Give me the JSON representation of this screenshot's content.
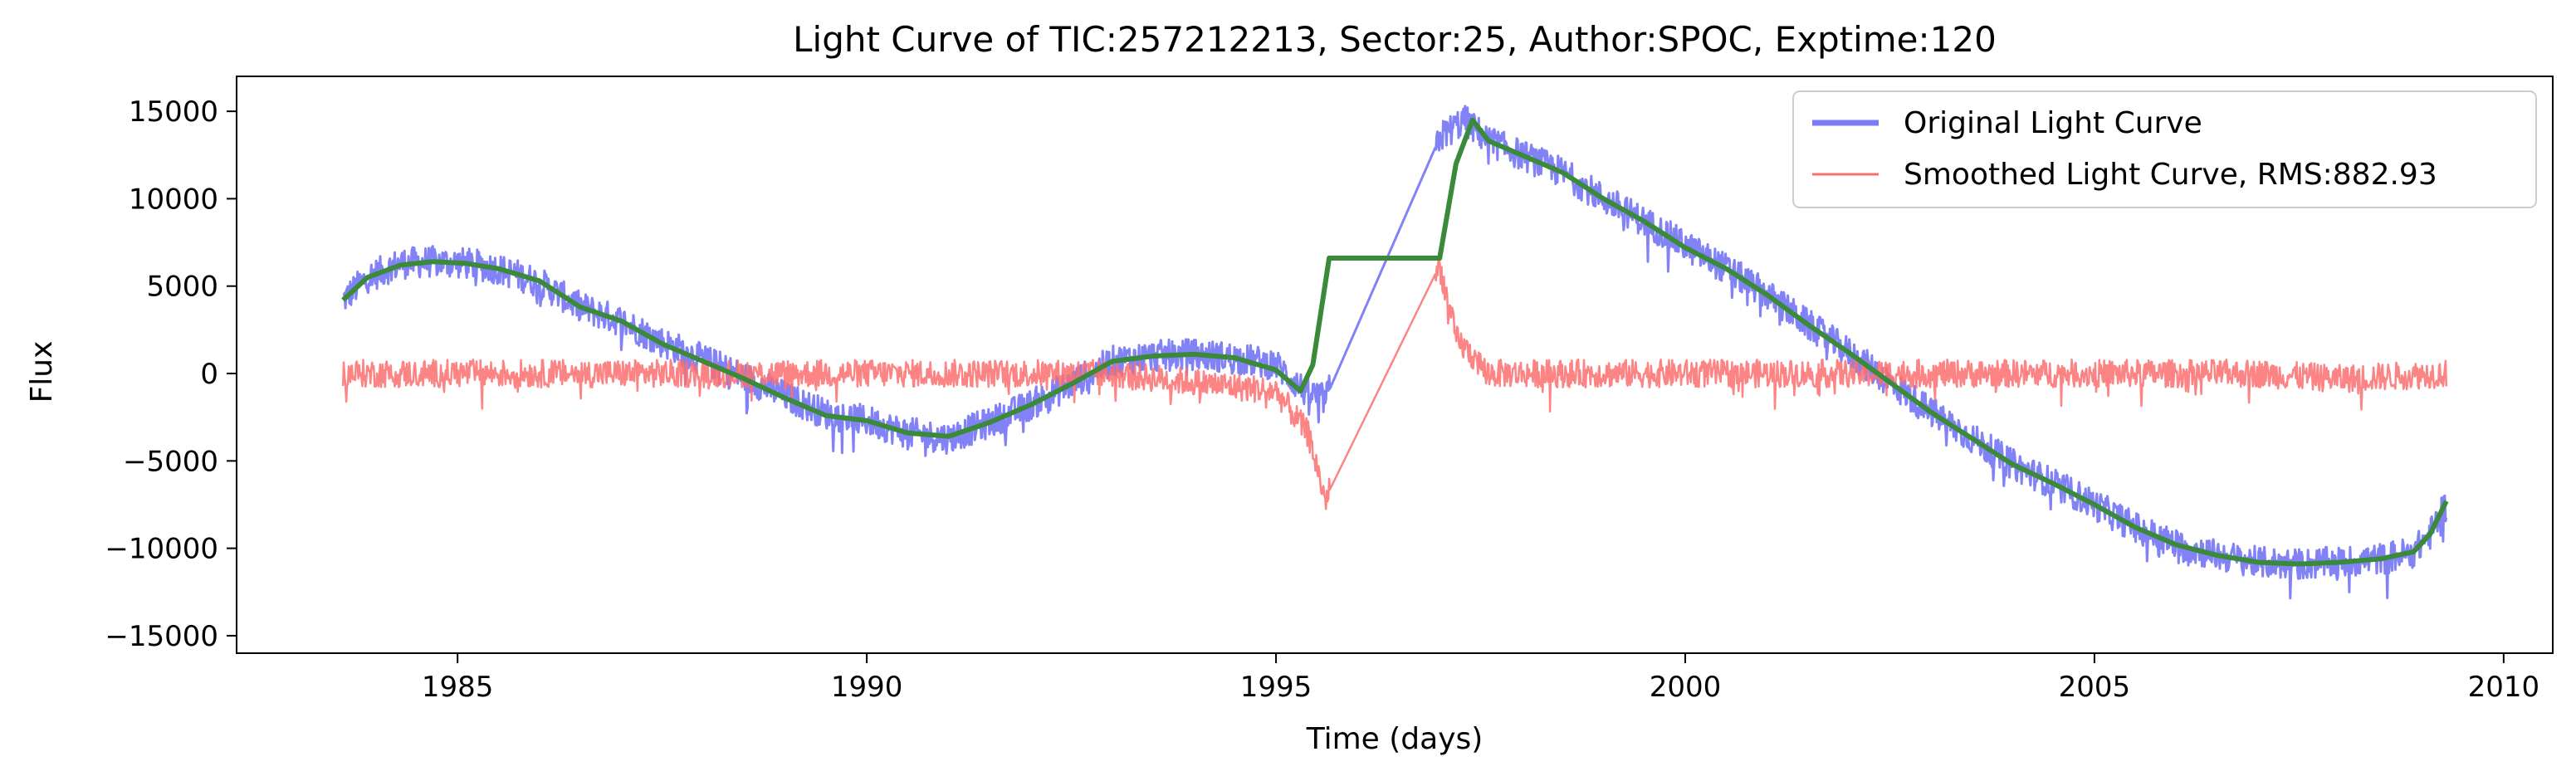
{
  "chart_data": {
    "type": "line",
    "title": "Light Curve of TIC:257212213, Sector:25, Author:SPOC, Exptime:120",
    "xlabel": "Time (days)",
    "ylabel": "Flux",
    "xlim": [
      1982.3,
      2010.6
    ],
    "ylim": [
      -16000,
      17000
    ],
    "xticks": [
      1985,
      1990,
      1995,
      2000,
      2005,
      2010
    ],
    "yticks": [
      -15000,
      -10000,
      -5000,
      0,
      5000,
      10000,
      15000
    ],
    "legend_position": "upper-right",
    "series": [
      {
        "name": "Original Light Curve",
        "color": "#7b7bf7",
        "noise_amplitude": 900,
        "x": [
          1983.6,
          1983.9,
          1984.3,
          1984.7,
          1985.1,
          1985.5,
          1986.0,
          1986.5,
          1987.0,
          1987.5,
          1988.0,
          1988.5,
          1989.0,
          1989.5,
          1990.0,
          1990.5,
          1991.0,
          1991.5,
          1992.0,
          1992.5,
          1993.0,
          1993.5,
          1994.0,
          1994.5,
          1995.0,
          1995.35,
          1995.6,
          1997.0,
          1997.3,
          1997.6,
          1998.0,
          1998.5,
          1999.0,
          1999.5,
          2000.0,
          2000.5,
          2001.0,
          2001.5,
          2002.0,
          2002.5,
          2003.0,
          2003.5,
          2004.0,
          2004.5,
          2005.0,
          2005.5,
          2006.0,
          2006.5,
          2007.0,
          2007.5,
          2008.0,
          2008.5,
          2008.9,
          2009.1,
          2009.3
        ],
        "y": [
          4200,
          5500,
          6300,
          6400,
          6300,
          6000,
          5200,
          3800,
          3000,
          1800,
          800,
          -200,
          -1300,
          -2300,
          -2700,
          -3400,
          -3700,
          -2800,
          -1800,
          -600,
          700,
          1000,
          1100,
          900,
          500,
          -1000,
          -1500,
          13500,
          14500,
          13300,
          12500,
          11500,
          10000,
          8700,
          7300,
          6000,
          4500,
          2800,
          1200,
          -500,
          -2200,
          -3700,
          -5200,
          -6300,
          -7500,
          -8800,
          -9800,
          -10400,
          -10800,
          -10900,
          -10800,
          -10600,
          -10200,
          -9200,
          -7500
        ]
      },
      {
        "name": "Smoothed Light Curve, RMS:882.93",
        "color": "#fb6e6e",
        "noise_amplitude": 800,
        "x": [
          1983.6,
          1985.0,
          1987.0,
          1989.0,
          1991.0,
          1993.0,
          1995.0,
          1995.4,
          1995.6,
          1997.0,
          1997.2,
          1997.6,
          1999.0,
          2001.0,
          2003.0,
          2005.0,
          2007.0,
          2008.0,
          2009.3
        ],
        "y": [
          0,
          0,
          0,
          0,
          0,
          0,
          -1000,
          -3500,
          -7200,
          6200,
          2000,
          0,
          0,
          0,
          0,
          0,
          0,
          -300,
          0
        ]
      },
      {
        "name": "",
        "color": "#3a8a3a",
        "noise_amplitude": 0,
        "x": [
          1983.6,
          1983.9,
          1984.3,
          1984.7,
          1985.1,
          1985.5,
          1986.0,
          1986.5,
          1987.0,
          1987.5,
          1988.0,
          1988.5,
          1989.0,
          1989.5,
          1990.0,
          1990.5,
          1991.0,
          1991.5,
          1992.0,
          1992.5,
          1993.0,
          1993.5,
          1994.0,
          1994.5,
          1995.0,
          1995.3,
          1995.45,
          1995.65,
          1997.0,
          1997.2,
          1997.4,
          1997.6,
          1998.0,
          1998.5,
          1999.0,
          1999.5,
          2000.0,
          2000.5,
          2001.0,
          2001.5,
          2002.0,
          2002.5,
          2003.0,
          2003.5,
          2004.0,
          2004.5,
          2005.0,
          2005.5,
          2006.0,
          2006.5,
          2007.0,
          2007.5,
          2008.0,
          2008.5,
          2008.9,
          2009.1,
          2009.3
        ],
        "y": [
          4200,
          5500,
          6200,
          6400,
          6300,
          6000,
          5300,
          3800,
          3000,
          1700,
          700,
          -300,
          -1400,
          -2400,
          -2700,
          -3400,
          -3600,
          -2800,
          -1800,
          -600,
          700,
          1000,
          1100,
          900,
          200,
          -1000,
          500,
          6600,
          6600,
          12000,
          14500,
          13300,
          12500,
          11500,
          10000,
          8700,
          7200,
          6000,
          4500,
          2800,
          1200,
          -500,
          -2200,
          -3700,
          -5200,
          -6300,
          -7500,
          -8800,
          -9800,
          -10400,
          -10800,
          -10900,
          -10800,
          -10600,
          -10200,
          -9200,
          -7300
        ]
      }
    ]
  }
}
